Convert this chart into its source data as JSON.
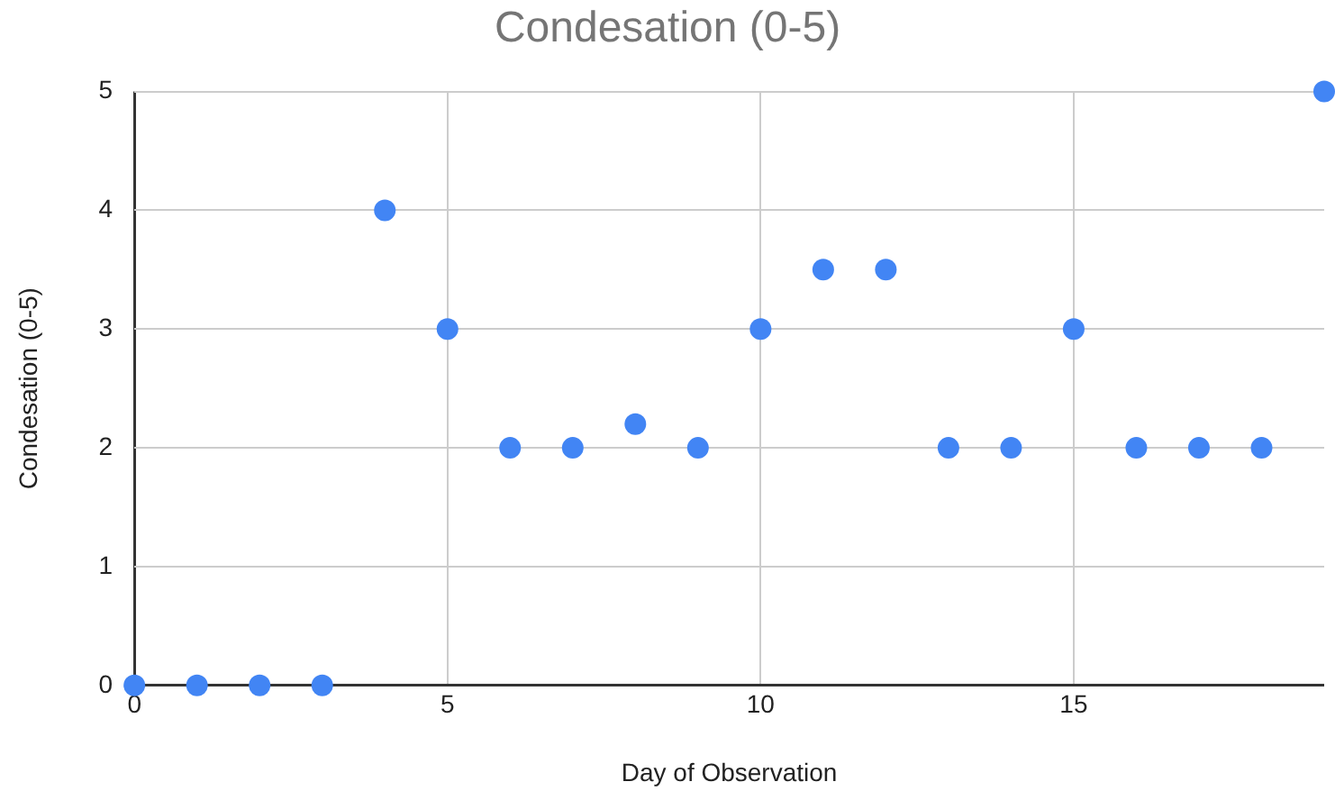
{
  "chart_data": {
    "type": "scatter",
    "title": "Condesation (0-5)",
    "xlabel": "Day of Observation",
    "ylabel": "Condesation (0-5)",
    "x": [
      0,
      1,
      2,
      3,
      4,
      5,
      6,
      7,
      8,
      9,
      10,
      11,
      12,
      13,
      14,
      15,
      16,
      17,
      18,
      19
    ],
    "series": [
      {
        "color": "#4285f4",
        "values": [
          0,
          0,
          0,
          0,
          4,
          3,
          2,
          2,
          2.2,
          2,
          3,
          3.5,
          3.5,
          2,
          2,
          3,
          2,
          2,
          2,
          5
        ]
      }
    ],
    "xlim": [
      0,
      19
    ],
    "xticks": [
      0,
      5,
      10,
      15
    ],
    "ylim": [
      0,
      5
    ],
    "yticks": [
      0,
      1,
      2,
      3,
      4,
      5
    ],
    "grid": true,
    "marker": "circle"
  }
}
